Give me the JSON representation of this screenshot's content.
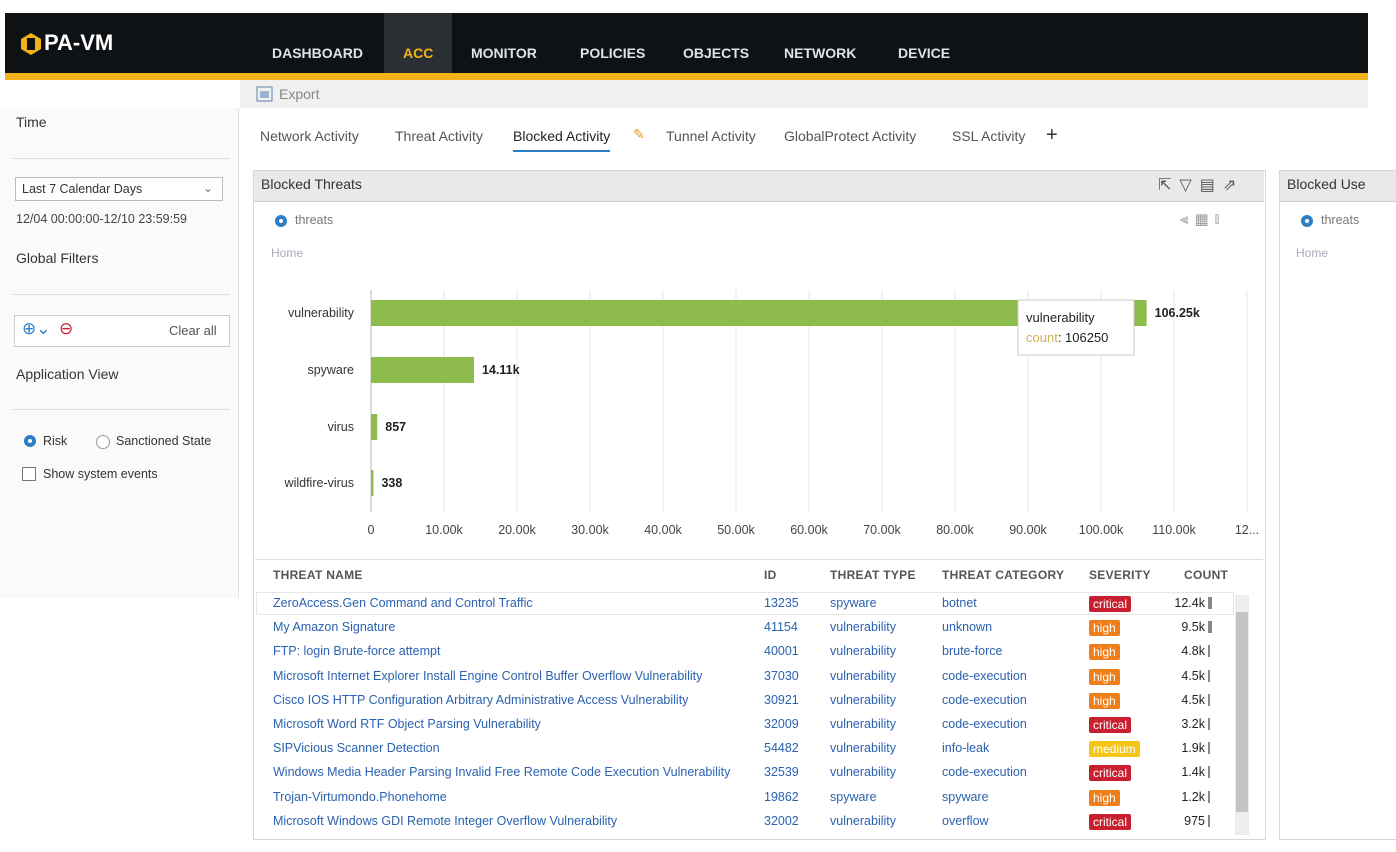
{
  "header": {
    "logo": "PA-VM",
    "nav": [
      "DASHBOARD",
      "ACC",
      "MONITOR",
      "POLICIES",
      "OBJECTS",
      "NETWORK",
      "DEVICE"
    ],
    "active": 1
  },
  "toolbar": {
    "export": "Export"
  },
  "sidebar": {
    "time_label": "Time",
    "time_select": "Last 7 Calendar Days",
    "time_range": "12/04 00:00:00-12/10 23:59:59",
    "global_filters": "Global Filters",
    "clear_all": "Clear all",
    "application_view": "Application View",
    "risk": "Risk",
    "sanctioned_state": "Sanctioned State",
    "show_system_events": "Show system events"
  },
  "tabs": [
    "Network Activity",
    "Threat Activity",
    "Blocked Activity",
    "Tunnel Activity",
    "GlobalProtect Activity",
    "SSL Activity"
  ],
  "active_tab": 2,
  "panel": {
    "title": "Blocked Threats",
    "radio": "threats",
    "breadcrumb": "Home"
  },
  "chart_data": {
    "type": "bar",
    "orientation": "horizontal",
    "color": "#8dbb4c",
    "categories": [
      "vulnerability",
      "spyware",
      "virus",
      "wildfire-virus"
    ],
    "values": [
      106250,
      14110,
      857,
      338
    ],
    "value_labels": [
      "106.25k",
      "14.11k",
      "857",
      "338"
    ],
    "xlim": [
      0,
      120000
    ],
    "xticks": [
      0,
      {
        "value": 10000,
        "label": "10.00k"
      },
      {
        "value": 20000,
        "label": "20.00k"
      },
      {
        "value": 30000,
        "label": "30.00k"
      },
      {
        "value": 40000,
        "label": "40.00k"
      },
      {
        "value": 50000,
        "label": "50.00k"
      },
      {
        "value": 60000,
        "label": "60.00k"
      },
      {
        "value": 70000,
        "label": "70.00k"
      },
      {
        "value": 80000,
        "label": "80.00k"
      },
      {
        "value": 90000,
        "label": "90.00k"
      },
      {
        "value": 100000,
        "label": "100.00k"
      },
      {
        "value": 110000,
        "label": "110.00k"
      },
      {
        "value": 120000,
        "label": "12..."
      }
    ],
    "grid": true,
    "tooltip": {
      "title": "vulnerability",
      "key": "count",
      "value": ": 106250"
    }
  },
  "table": {
    "columns": [
      "THREAT NAME",
      "ID",
      "THREAT TYPE",
      "THREAT CATEGORY",
      "SEVERITY",
      "COUNT"
    ],
    "rows": [
      [
        "ZeroAccess.Gen Command and Control Traffic",
        "13235",
        "spyware",
        "botnet",
        "critical",
        "12.4k"
      ],
      [
        "My Amazon Signature",
        "41154",
        "vulnerability",
        "unknown",
        "high",
        "9.5k"
      ],
      [
        "FTP: login Brute-force attempt",
        "40001",
        "vulnerability",
        "brute-force",
        "high",
        "4.8k"
      ],
      [
        "Microsoft Internet Explorer Install Engine Control Buffer Overflow Vulnerability",
        "37030",
        "vulnerability",
        "code-execution",
        "high",
        "4.5k"
      ],
      [
        "Cisco IOS HTTP Configuration Arbitrary Administrative Access Vulnerability",
        "30921",
        "vulnerability",
        "code-execution",
        "high",
        "4.5k"
      ],
      [
        "Microsoft Word RTF Object Parsing Vulnerability",
        "32009",
        "vulnerability",
        "code-execution",
        "critical",
        "3.2k"
      ],
      [
        "SIPVicious Scanner Detection",
        "54482",
        "vulnerability",
        "info-leak",
        "medium",
        "1.9k"
      ],
      [
        "Windows Media Header Parsing Invalid Free Remote Code Execution Vulnerability",
        "32539",
        "vulnerability",
        "code-execution",
        "critical",
        "1.4k"
      ],
      [
        "Trojan-Virtumondo.Phonehome",
        "19862",
        "spyware",
        "spyware",
        "high",
        "1.2k"
      ],
      [
        "Microsoft Windows GDI Remote Integer Overflow Vulnerability",
        "32002",
        "vulnerability",
        "overflow",
        "critical",
        "975"
      ]
    ],
    "severity_colors": {
      "critical": "#c8202e",
      "high": "#ef7d1a",
      "medium": "#f5c518"
    }
  },
  "right_panel": {
    "title": "Blocked Use",
    "radio": "threats",
    "breadcrumb": "Home"
  }
}
